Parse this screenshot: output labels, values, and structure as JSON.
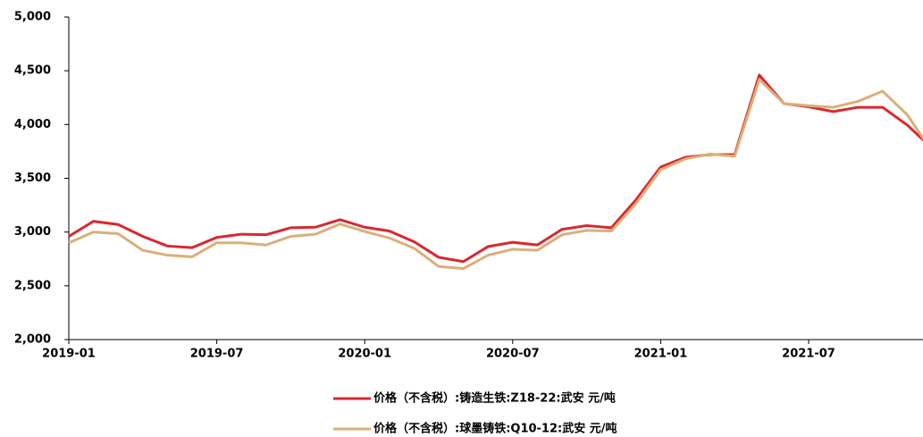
{
  "chart_data": {
    "type": "line",
    "categories": [
      "2019-01",
      null,
      null,
      null,
      null,
      null,
      "2019-07",
      null,
      null,
      null,
      null,
      null,
      "2020-01",
      null,
      null,
      null,
      null,
      null,
      "2020-07",
      null,
      null,
      null,
      null,
      null,
      "2021-01",
      null,
      null,
      null,
      null,
      null,
      "2021-07",
      null,
      null,
      null,
      null,
      null
    ],
    "series": [
      {
        "name": "价格（不含税）:铸造生铁:Z18-22:武安  元/吨",
        "color": "#d9282f",
        "values": [
          2960,
          3100,
          3070,
          2960,
          2870,
          2855,
          2950,
          2980,
          2975,
          3040,
          3045,
          3115,
          3045,
          3010,
          2910,
          2765,
          2725,
          2865,
          2905,
          2880,
          3025,
          3060,
          3040,
          3300,
          3605,
          3695,
          3720,
          3720,
          4460,
          4195,
          4165,
          4120,
          4160,
          4160,
          3995,
          3780
        ]
      },
      {
        "name": "价格（不含税）:球墨铸铁:Q10-12:武安  元/吨",
        "color": "#d9b07a",
        "values": [
          2900,
          3000,
          2985,
          2830,
          2785,
          2770,
          2900,
          2900,
          2880,
          2960,
          2980,
          3075,
          3005,
          2945,
          2850,
          2680,
          2660,
          2785,
          2840,
          2830,
          2975,
          3015,
          3010,
          3265,
          3580,
          3680,
          3725,
          3705,
          4420,
          4195,
          4175,
          4160,
          4215,
          4310,
          4090,
          3750
        ]
      }
    ],
    "ylim": [
      2000,
      5000
    ],
    "yticks": [
      {
        "value": 2000,
        "label": "2,000"
      },
      {
        "value": 2500,
        "label": "2,500"
      },
      {
        "value": 3000,
        "label": "3,000"
      },
      {
        "value": 3500,
        "label": "3,500"
      },
      {
        "value": 4000,
        "label": "4,000"
      },
      {
        "value": 4500,
        "label": "4,500"
      },
      {
        "value": 5000,
        "label": "5,000"
      }
    ],
    "legend": "bottom"
  }
}
